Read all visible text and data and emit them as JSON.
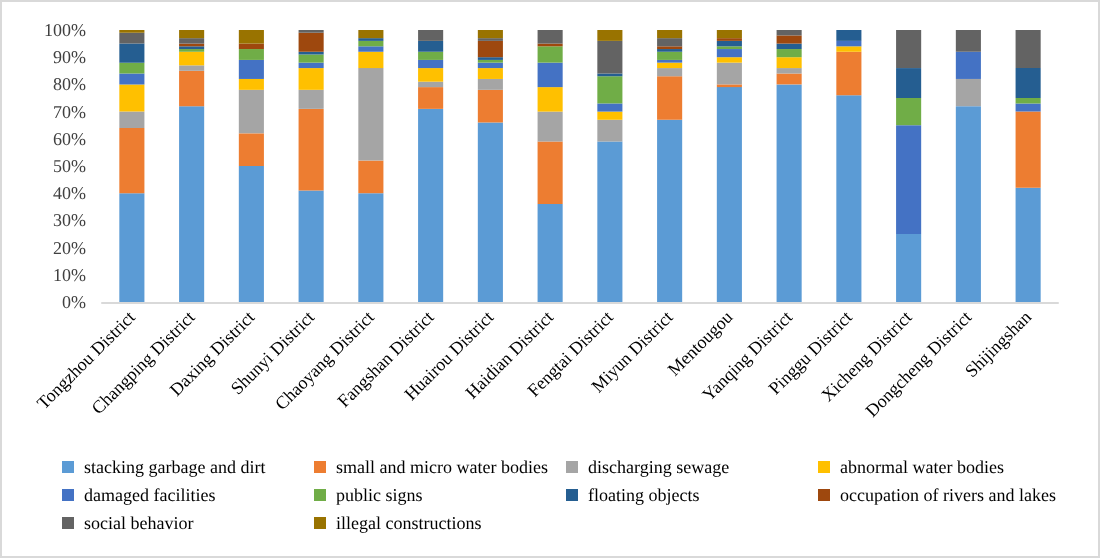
{
  "chart_data": {
    "type": "bar",
    "stacked": true,
    "categories": [
      "Tongzhou District",
      "Changping District",
      "Daxing District",
      "Shunyi District",
      "Chaoyang District",
      "Fangshan District",
      "Huairou District",
      "Haidian District",
      "Fengtai District",
      "Miyun District",
      "Mentougou",
      "Yanqing District",
      "Pinggu District",
      "Xicheng District",
      "Dongcheng District",
      "Shijingshan"
    ],
    "series": [
      {
        "name": "stacking garbage and dirt",
        "color": "#5b9bd5",
        "values": [
          40,
          72,
          50,
          41,
          40,
          71,
          66,
          36,
          59,
          67,
          79,
          80,
          76,
          25,
          72,
          42
        ]
      },
      {
        "name": "small and micro water bodies",
        "color": "#ed7d31",
        "values": [
          24,
          13,
          12,
          30,
          12,
          8,
          12,
          23,
          0,
          16,
          1,
          4,
          16,
          0,
          0,
          28
        ]
      },
      {
        "name": "discharging sewage",
        "color": "#a5a5a5",
        "values": [
          6,
          2,
          16,
          7,
          34,
          2,
          4,
          11,
          8,
          3,
          8,
          2,
          0,
          0,
          10,
          0
        ]
      },
      {
        "name": "abnormal water bodies",
        "color": "#ffc000",
        "values": [
          10,
          5,
          4,
          8,
          6,
          5,
          4,
          9,
          3,
          2,
          2,
          4,
          2,
          0,
          0,
          0
        ]
      },
      {
        "name": "damaged facilities",
        "color": "#4472c4",
        "values": [
          4,
          0,
          7,
          2,
          2,
          3,
          2,
          9,
          3,
          1,
          3,
          0,
          2,
          40,
          10,
          3
        ]
      },
      {
        "name": "public signs",
        "color": "#70ad47",
        "values": [
          4,
          1,
          4,
          3,
          2,
          3,
          1,
          6,
          10,
          3,
          1,
          3,
          0,
          10,
          0,
          2
        ]
      },
      {
        "name": "floating objects",
        "color": "#255e91",
        "values": [
          7,
          1,
          0,
          1,
          1,
          4,
          1,
          0,
          1,
          1,
          2,
          2,
          4,
          11,
          0,
          11
        ]
      },
      {
        "name": "occupation of rivers and lakes",
        "color": "#9e480e",
        "values": [
          0,
          1,
          2,
          7,
          0,
          0,
          6,
          1,
          0,
          1,
          1,
          3,
          0,
          0,
          0,
          0
        ]
      },
      {
        "name": "social behavior",
        "color": "#636363",
        "values": [
          4,
          2,
          0,
          1,
          0,
          4,
          1,
          5,
          12,
          3,
          0,
          2,
          0,
          14,
          8,
          14
        ]
      },
      {
        "name": "illegal constructions",
        "color": "#997300",
        "values": [
          1,
          3,
          5,
          0,
          3,
          0,
          3,
          0,
          4,
          3,
          3,
          0,
          0,
          0,
          0,
          0
        ]
      }
    ],
    "ylim": [
      0,
      100
    ],
    "yticks": [
      {
        "value": 0,
        "label": "0%"
      },
      {
        "value": 10,
        "label": "10%"
      },
      {
        "value": 20,
        "label": "20%"
      },
      {
        "value": 30,
        "label": "30%"
      },
      {
        "value": 40,
        "label": "40%"
      },
      {
        "value": 50,
        "label": "50%"
      },
      {
        "value": 60,
        "label": "60%"
      },
      {
        "value": 70,
        "label": "70%"
      },
      {
        "value": 80,
        "label": "80%"
      },
      {
        "value": 90,
        "label": "90%"
      },
      {
        "value": 100,
        "label": "100%"
      }
    ],
    "grid": false,
    "legend": "bottom"
  }
}
